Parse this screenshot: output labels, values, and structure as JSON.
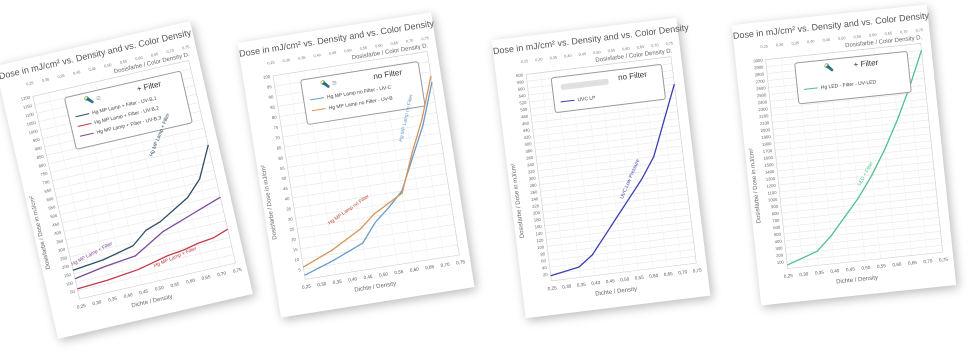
{
  "chart_data": [
    {
      "type": "line",
      "title": "Dose in mJ/cm² vs. Density and vs. Color Density",
      "subtitle": "Dosisfarbe / Color Density D.",
      "xlabel": "Dichte / Density",
      "ylabel": "Dosisfarbe / Dose in mJ/cm²",
      "legend_text": "+ Filter",
      "legend_symbol": "🔦 ≡",
      "x_ticks": [
        "0,25",
        "0,30",
        "0,35",
        "0,40",
        "0,45",
        "0,50",
        "0,55",
        "0,60",
        "0,65",
        "0,70",
        "0,75"
      ],
      "y_ticks": [
        "50",
        "100",
        "150",
        "200",
        "250",
        "300",
        "350",
        "400",
        "450",
        "500",
        "550",
        "600",
        "650",
        "700",
        "750",
        "800",
        "850",
        "900",
        "950",
        "1000",
        "1050",
        "1100",
        "1150",
        "1200"
      ],
      "top_ticks": [
        "0,25",
        "0,30",
        "0,35",
        "0,40",
        "0,45",
        "0,50",
        "0,55",
        "0,60",
        "0,65",
        "0,70",
        "0,75"
      ],
      "xlim": [
        0.25,
        0.75
      ],
      "ylim": [
        0,
        1200
      ],
      "series": [
        {
          "name": "Hg MP Lamp + Filter - UV-B,1",
          "color": "#2e4e66",
          "x": [
            0.25,
            0.35,
            0.45,
            0.5,
            0.55,
            0.6,
            0.65,
            0.7,
            0.75
          ],
          "y": [
            170,
            190,
            230,
            300,
            330,
            380,
            430,
            520,
            700
          ]
        },
        {
          "name": "Hg MP Lamp + Filter - UV-B,2",
          "color": "#c03d48",
          "x": [
            0.25,
            0.35,
            0.45,
            0.5,
            0.55,
            0.6,
            0.65,
            0.7,
            0.75
          ],
          "y": [
            60,
            70,
            90,
            110,
            130,
            140,
            160,
            170,
            200
          ]
        },
        {
          "name": "Hg MP Lamp + Filter - UV-B,3",
          "color": "#7c4a9a",
          "x": [
            0.25,
            0.35,
            0.45,
            0.5,
            0.55,
            0.6,
            0.65,
            0.7,
            0.75
          ],
          "y": [
            120,
            150,
            170,
            220,
            270,
            300,
            330,
            360,
            390
          ]
        }
      ],
      "annotations": [
        {
          "text": "Hg MP Lamp + Filter",
          "color": "#2e4e66"
        },
        {
          "text": "Hg MP Lamp + Filter",
          "color": "#c03d48"
        },
        {
          "text": "Hg MP Lamp + Filter",
          "color": "#7c4a9a"
        }
      ]
    },
    {
      "type": "line",
      "title": "Dose in mJ/cm² vs. Density and vs. Color Density",
      "subtitle": "Dosisfarbe / Color Density D.",
      "xlabel": "Dichte / Density",
      "ylabel": "Dosisfarbe / Dose in mJ/cm²",
      "legend_text": "no Filter",
      "legend_symbol": "🔦 ≡",
      "x_ticks": [
        "0,25",
        "0,30",
        "0,35",
        "0,40",
        "0,45",
        "0,50",
        "0,55",
        "0,60",
        "0,65",
        "0,70",
        "0,75"
      ],
      "y_ticks": [
        "5",
        "10",
        "15",
        "20",
        "25",
        "30",
        "35",
        "40",
        "45",
        "50",
        "55",
        "60",
        "65",
        "70",
        "75",
        "80",
        "85",
        "90",
        "95",
        "100"
      ],
      "top_ticks": [
        "0,25",
        "0,30",
        "0,35",
        "0,40",
        "0,45",
        "0,50",
        "0,55",
        "0,60",
        "0,65",
        "0,70",
        "0,75"
      ],
      "xlim": [
        0.25,
        0.75
      ],
      "ylim": [
        0,
        100
      ],
      "series": [
        {
          "name": "Hg MP Lamp no Filter - UV-C",
          "color": "#6b9bc7",
          "x": [
            0.25,
            0.35,
            0.45,
            0.5,
            0.55,
            0.6,
            0.65,
            0.7,
            0.75
          ],
          "y": [
            2,
            7,
            13,
            22,
            28,
            35,
            50,
            65,
            85
          ]
        },
        {
          "name": "Hg MP Lamp no Filter - UV-B",
          "color": "#d8955a",
          "x": [
            0.25,
            0.35,
            0.45,
            0.5,
            0.55,
            0.6,
            0.65,
            0.7,
            0.75
          ],
          "y": [
            6,
            12,
            20,
            26,
            30,
            34,
            52,
            68,
            88
          ]
        }
      ],
      "annotations": [
        {
          "text": "Hg MP Lamp no Filter",
          "color": "#6b9bc7"
        },
        {
          "text": "Hg MP Lamp no Filter",
          "color": "#c04a38"
        }
      ]
    },
    {
      "type": "line",
      "title": "Dose in mJ/cm² vs. Density and vs. Color Density",
      "subtitle": "Dosisfarbe / Color Density D.",
      "xlabel": "Dichte / Density",
      "ylabel": "Dosisfarbe / Dose in mJ/cm²",
      "legend_text": "no Filter",
      "legend_symbol": "",
      "x_ticks": [
        "0,25",
        "0,30",
        "0,35",
        "0,40",
        "0,45",
        "0,50",
        "0,55",
        "0,60",
        "0,65",
        "0,70",
        "0,75"
      ],
      "y_ticks": [
        "20",
        "40",
        "60",
        "80",
        "100",
        "120",
        "140",
        "160",
        "180",
        "200",
        "220",
        "240",
        "260",
        "280",
        "300",
        "320",
        "340",
        "360",
        "380",
        "400",
        "420",
        "440",
        "460",
        "480",
        "500",
        "520",
        "540",
        "560",
        "580",
        "600"
      ],
      "top_ticks": [
        "0,25",
        "0,30",
        "0,35",
        "0,40",
        "0,45",
        "0,50",
        "0,55",
        "0,60",
        "0,65",
        "0,70",
        "0,75"
      ],
      "xlim": [
        0.25,
        0.75
      ],
      "ylim": [
        0,
        600
      ],
      "series": [
        {
          "name": "UVC LP",
          "color": "#3b3fb0",
          "x": [
            0.25,
            0.35,
            0.4,
            0.45,
            0.5,
            0.55,
            0.6,
            0.65,
            0.7,
            0.75
          ],
          "y": [
            15,
            30,
            60,
            110,
            160,
            210,
            260,
            320,
            420,
            520
          ]
        }
      ],
      "annotations": [
        {
          "text": "UVC Low Pressure",
          "color": "#3b3fb0"
        }
      ]
    },
    {
      "type": "line",
      "title": "Dose in mJ/cm² vs. Density and vs. Color Density",
      "subtitle": "Dosisfarbe / Color Density D.",
      "xlabel": "Dichte / Density",
      "ylabel": "Dosisfarbe / Dose in mJ/cm²",
      "legend_text": "+ Filter",
      "legend_symbol": "🔦",
      "x_ticks": [
        "0,25",
        "0,30",
        "0,35",
        "0,40",
        "0,45",
        "0,50",
        "0,55",
        "0,60",
        "0,65",
        "0,70",
        "0,75"
      ],
      "y_ticks": [
        "100",
        "200",
        "300",
        "400",
        "500",
        "600",
        "700",
        "800",
        "900",
        "1000",
        "1100",
        "1200",
        "1300",
        "1400",
        "1500",
        "1600",
        "1700",
        "1800",
        "1900",
        "2000",
        "2100",
        "2200",
        "2300",
        "2400",
        "2500",
        "2600",
        "2700",
        "2800",
        "2900",
        "3000"
      ],
      "top_ticks": [
        "0,25",
        "0,30",
        "0,35",
        "0,40",
        "0,45",
        "0,50",
        "0,55",
        "0,60",
        "0,65",
        "0,70",
        "0,75"
      ],
      "xlim": [
        0.25,
        0.75
      ],
      "ylim": [
        0,
        3000
      ],
      "series": [
        {
          "name": "Hg LED - Filter - UV-LED",
          "color": "#4fc08d",
          "x": [
            0.25,
            0.35,
            0.4,
            0.45,
            0.5,
            0.55,
            0.6,
            0.65,
            0.7,
            0.75
          ],
          "y": [
            50,
            200,
            400,
            650,
            900,
            1200,
            1550,
            1950,
            2400,
            2900
          ]
        }
      ],
      "annotations": [
        {
          "text": "LED + Filter",
          "color": "#4fc08d"
        }
      ]
    }
  ]
}
